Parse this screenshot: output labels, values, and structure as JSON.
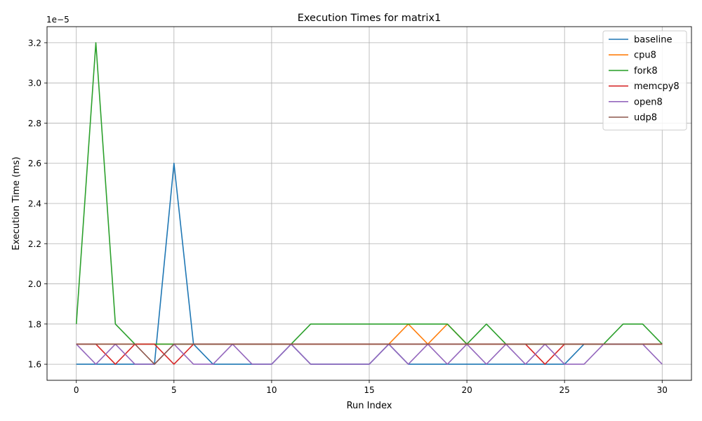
{
  "chart_data": {
    "type": "line",
    "title": "Execution Times for matrix1",
    "xlabel": "Run Index",
    "ylabel": "Execution Time (ms)",
    "y_offset_text": "1e−5",
    "xlim": [
      -1.5,
      31.5
    ],
    "ylim": [
      1.52,
      3.28
    ],
    "x_ticks": [
      0,
      5,
      10,
      15,
      20,
      25,
      30
    ],
    "y_ticks": [
      1.6,
      1.8,
      2.0,
      2.2,
      2.4,
      2.6,
      2.8,
      3.0,
      3.2
    ],
    "y_tick_labels": [
      "1.6",
      "1.8",
      "2.0",
      "2.2",
      "2.4",
      "2.6",
      "2.8",
      "3.0",
      "3.2"
    ],
    "grid": true,
    "legend_position": "top-right",
    "x": [
      0,
      1,
      2,
      3,
      4,
      5,
      6,
      7,
      8,
      9,
      10,
      11,
      12,
      13,
      14,
      15,
      16,
      17,
      18,
      19,
      20,
      21,
      22,
      23,
      24,
      25,
      26,
      27,
      28,
      29,
      30
    ],
    "series": [
      {
        "name": "baseline",
        "color": "#1f77b4",
        "values": [
          1.6,
          1.6,
          1.6,
          1.6,
          1.6,
          2.6,
          1.7,
          1.6,
          1.6,
          1.6,
          1.6,
          1.7,
          1.6,
          1.6,
          1.6,
          1.6,
          1.7,
          1.6,
          1.6,
          1.6,
          1.6,
          1.6,
          1.6,
          1.6,
          1.6,
          1.6,
          1.7,
          1.7,
          1.7,
          1.7,
          1.7
        ]
      },
      {
        "name": "cpu8",
        "color": "#ff7f0e",
        "values": [
          1.7,
          1.7,
          1.7,
          1.7,
          1.7,
          1.7,
          1.7,
          1.7,
          1.7,
          1.7,
          1.7,
          1.7,
          1.7,
          1.7,
          1.7,
          1.7,
          1.7,
          1.8,
          1.7,
          1.8,
          1.7,
          1.7,
          1.7,
          1.7,
          1.7,
          1.7,
          1.7,
          1.7,
          1.7,
          1.7,
          1.7
        ]
      },
      {
        "name": "fork8",
        "color": "#2ca02c",
        "values": [
          1.8,
          3.2,
          1.8,
          1.7,
          1.7,
          1.7,
          1.7,
          1.7,
          1.7,
          1.7,
          1.7,
          1.7,
          1.8,
          1.8,
          1.8,
          1.8,
          1.8,
          1.8,
          1.8,
          1.8,
          1.7,
          1.8,
          1.7,
          1.7,
          1.7,
          1.7,
          1.7,
          1.7,
          1.8,
          1.8,
          1.7
        ]
      },
      {
        "name": "memcpy8",
        "color": "#d62728",
        "values": [
          1.7,
          1.7,
          1.6,
          1.7,
          1.7,
          1.6,
          1.7,
          1.7,
          1.7,
          1.7,
          1.7,
          1.7,
          1.7,
          1.7,
          1.7,
          1.7,
          1.7,
          1.7,
          1.7,
          1.7,
          1.7,
          1.7,
          1.7,
          1.7,
          1.6,
          1.7,
          1.7,
          1.7,
          1.7,
          1.7,
          1.7
        ]
      },
      {
        "name": "open8",
        "color": "#9467bd",
        "values": [
          1.7,
          1.6,
          1.7,
          1.6,
          1.6,
          1.7,
          1.6,
          1.6,
          1.7,
          1.6,
          1.6,
          1.7,
          1.6,
          1.6,
          1.6,
          1.6,
          1.7,
          1.6,
          1.7,
          1.6,
          1.7,
          1.6,
          1.7,
          1.6,
          1.7,
          1.6,
          1.6,
          1.7,
          1.7,
          1.7,
          1.6
        ]
      },
      {
        "name": "udp8",
        "color": "#8c564b",
        "values": [
          1.7,
          1.7,
          1.7,
          1.7,
          1.6,
          1.7,
          1.7,
          1.7,
          1.7,
          1.7,
          1.7,
          1.7,
          1.7,
          1.7,
          1.7,
          1.7,
          1.7,
          1.7,
          1.7,
          1.7,
          1.7,
          1.7,
          1.7,
          1.7,
          1.7,
          1.7,
          1.7,
          1.7,
          1.7,
          1.7,
          1.7
        ]
      }
    ]
  }
}
